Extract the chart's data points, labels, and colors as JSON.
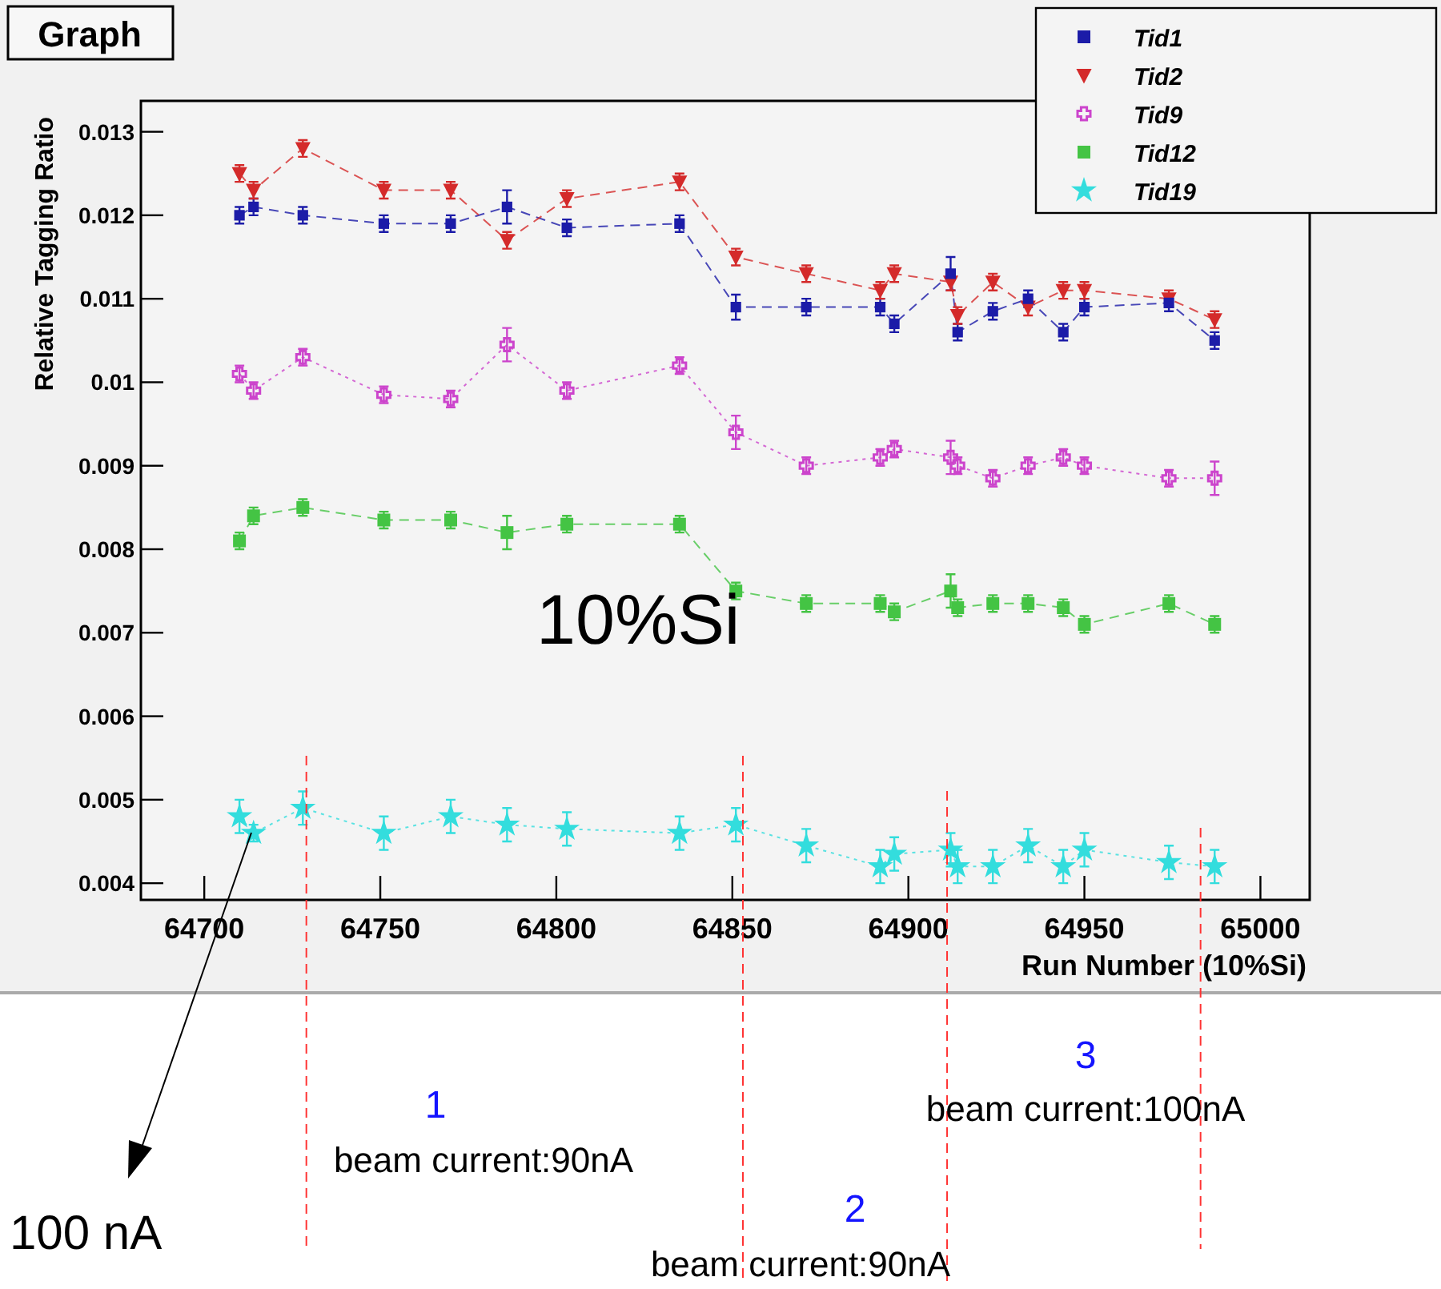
{
  "chart_data": {
    "type": "line",
    "title": "Graph",
    "xlabel": "Run Number (10%Si)",
    "ylabel": "Relative Tagging Ratio",
    "x": [
      64710,
      64714,
      64728,
      64751,
      64770,
      64786,
      64803,
      64835,
      64851,
      64871,
      64892,
      64896,
      64912,
      64914,
      64924,
      64934,
      64944,
      64950,
      64974,
      64987
    ],
    "series": [
      {
        "name": "Tid1",
        "color": "#1c1ca8",
        "marker": "square",
        "line_style": "dashed",
        "values": [
          0.012,
          0.0121,
          0.012,
          0.0119,
          0.0119,
          0.0121,
          0.01185,
          0.0119,
          0.0109,
          0.0109,
          0.0109,
          0.0107,
          0.0113,
          0.0106,
          0.01085,
          0.011,
          0.0106,
          0.0109,
          0.01095,
          0.0105
        ],
        "errors": [
          0.0001,
          0.0001,
          0.0001,
          0.0001,
          0.0001,
          0.0002,
          0.0001,
          0.0001,
          0.00015,
          0.0001,
          0.0001,
          0.0001,
          0.0002,
          0.0001,
          0.0001,
          0.0001,
          0.0001,
          0.0001,
          0.0001,
          0.0001
        ]
      },
      {
        "name": "Tid2",
        "color": "#d42a2a",
        "marker": "triangle",
        "line_style": "dashed",
        "values": [
          0.0125,
          0.0123,
          0.0128,
          0.0123,
          0.0123,
          0.0117,
          0.0122,
          0.0124,
          0.0115,
          0.0113,
          0.0111,
          0.0113,
          0.0112,
          0.0108,
          0.0112,
          0.0109,
          0.0111,
          0.0111,
          0.011,
          0.01075
        ],
        "errors": [
          0.0001,
          0.0001,
          0.0001,
          0.0001,
          0.0001,
          0.0001,
          0.0001,
          0.0001,
          0.0001,
          0.0001,
          0.0001,
          0.0001,
          0.0001,
          0.0001,
          0.0001,
          0.0001,
          0.0001,
          0.0001,
          0.0001,
          0.0001
        ]
      },
      {
        "name": "Tid9",
        "color": "#cc44cc",
        "marker": "cross",
        "line_style": "dotted",
        "values": [
          0.0101,
          0.0099,
          0.0103,
          0.00985,
          0.0098,
          0.01045,
          0.0099,
          0.0102,
          0.0094,
          0.009,
          0.0091,
          0.0092,
          0.0091,
          0.009,
          0.00885,
          0.009,
          0.0091,
          0.009,
          0.00885,
          0.00885
        ],
        "errors": [
          0.0001,
          0.0001,
          0.0001,
          0.0001,
          0.0001,
          0.0002,
          0.0001,
          0.0001,
          0.0002,
          0.0001,
          0.0001,
          0.0001,
          0.0002,
          0.0001,
          0.0001,
          0.0001,
          0.0001,
          0.0001,
          0.0001,
          0.0002
        ]
      },
      {
        "name": "Tid12",
        "color": "#44c444",
        "marker": "square",
        "line_style": "dashed",
        "values": [
          0.0081,
          0.0084,
          0.0085,
          0.00835,
          0.00835,
          0.0082,
          0.0083,
          0.0083,
          0.0075,
          0.00735,
          0.00735,
          0.00725,
          0.0075,
          0.0073,
          0.00735,
          0.00735,
          0.0073,
          0.0071,
          0.00735,
          0.0071
        ],
        "errors": [
          0.0001,
          0.0001,
          0.0001,
          0.0001,
          0.0001,
          0.0002,
          0.0001,
          0.0001,
          0.0001,
          0.0001,
          0.0001,
          0.0001,
          0.0002,
          0.0001,
          0.0001,
          0.0001,
          0.0001,
          0.0001,
          0.0001,
          0.0001
        ]
      },
      {
        "name": "Tid19",
        "color": "#33dddd",
        "marker": "star",
        "line_style": "dotted",
        "values": [
          0.0048,
          0.0046,
          0.0049,
          0.0046,
          0.0048,
          0.0047,
          0.00465,
          0.0046,
          0.0047,
          0.00445,
          0.0042,
          0.00435,
          0.0044,
          0.0042,
          0.0042,
          0.00445,
          0.0042,
          0.0044,
          0.00425,
          0.0042
        ],
        "errors": [
          0.0002,
          0.0001,
          0.0002,
          0.0002,
          0.0002,
          0.0002,
          0.0002,
          0.0002,
          0.0002,
          0.0002,
          0.0002,
          0.0002,
          0.0002,
          0.0002,
          0.0002,
          0.0002,
          0.0002,
          0.0002,
          0.0002,
          0.0002
        ]
      }
    ],
    "xlim": [
      64682,
      65014
    ],
    "xticks": [
      64700,
      64750,
      64800,
      64850,
      64900,
      64950,
      65000
    ],
    "ylim": [
      0.0038,
      0.01337
    ],
    "yticks": [
      0.004,
      0.005,
      0.006,
      0.007,
      0.008,
      0.009,
      0.01,
      0.011,
      0.012,
      0.013
    ],
    "grid": false,
    "legend": "top right",
    "ref_lines": [
      {
        "axis": "x",
        "value": 64729,
        "color": "#ff3333",
        "line_style": "dashed"
      },
      {
        "axis": "x",
        "value": 64853,
        "color": "#ff3333",
        "line_style": "dashed"
      },
      {
        "axis": "x",
        "value": 64911,
        "color": "#ff3333",
        "line_style": "dashed"
      },
      {
        "axis": "x",
        "value": 64983,
        "color": "#ff3333",
        "line_style": "dashed"
      }
    ],
    "annotations": [
      "10%Si",
      "1",
      "beam current:90nA",
      "2",
      "beam current:90nA",
      "3",
      "beam current:100nA",
      "100 nA"
    ]
  }
}
